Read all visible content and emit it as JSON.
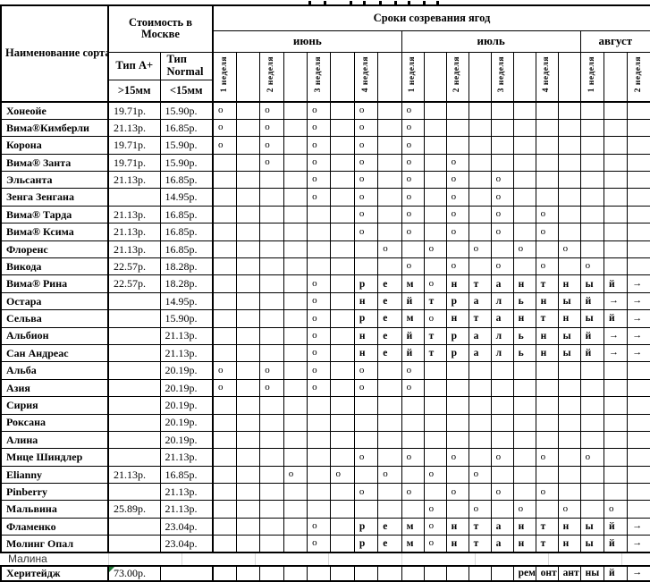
{
  "colors": {
    "border": "#000000",
    "faint_grid": "#d9d9d9",
    "error_marker_green": "#1e7a34",
    "section_text": "#333333"
  },
  "top_remnant": {
    "marks": [
      345,
      362,
      391,
      406,
      424,
      441,
      456,
      473,
      488
    ]
  },
  "header": {
    "name_column": "Наименование сорта",
    "cost_group_line1": "Стоимость  в",
    "cost_group_line2": "Москве",
    "type_a": "Тип А+",
    "type_normal_line1": "Тип",
    "type_normal_line2": "Normal",
    "size_a": ">15мм",
    "size_normal": "<15мм",
    "ripening_group": "Сроки созревания ягод",
    "months": [
      {
        "label": "июнь",
        "weeks": 8
      },
      {
        "label": "июль",
        "weeks": 8
      },
      {
        "label": "август",
        "weeks": 3
      }
    ],
    "week_label_cols": {
      "1": "1 неделя",
      "3": "2 неделя",
      "5": "3 неделя",
      "7": "4 неделя",
      "9": "1 неделя",
      "11": "2 неделя",
      "13": "3 неделя",
      "15": "4 неделя",
      "17": "1 неделя",
      "19": "2 неделя"
    }
  },
  "rows": [
    {
      "name": "Хонеойе",
      "price_a": "19.71р.",
      "price_normal": "15.90р.",
      "cells": {
        "1": "о",
        "3": "о",
        "5": "о",
        "7": "о",
        "9": "о"
      }
    },
    {
      "name": "Вима®Кимберли",
      "price_a": "21.13р.",
      "price_normal": "16.85р.",
      "cells": {
        "1": "о",
        "3": "о",
        "5": "о",
        "7": "о",
        "9": "о"
      }
    },
    {
      "name": "Корона",
      "price_a": "19.71р.",
      "price_normal": "15.90р.",
      "cells": {
        "1": "о",
        "3": "о",
        "5": "о",
        "7": "о",
        "9": "о"
      }
    },
    {
      "name": "Вима® Занта",
      "price_a": "19.71р.",
      "price_normal": "15.90р.",
      "cells": {
        "3": "о",
        "5": "о",
        "7": "о",
        "9": "о",
        "11": "о"
      }
    },
    {
      "name": "Эльсанта",
      "price_a": "21.13р.",
      "price_normal": "16.85р.",
      "cells": {
        "5": "о",
        "7": "о",
        "9": "о",
        "11": "о",
        "13": "о"
      }
    },
    {
      "name": "Зенга Зенгана",
      "price_a": "",
      "price_normal": "14.95р.",
      "cells": {
        "5": "о",
        "7": "о",
        "9": "о",
        "11": "о",
        "13": "о"
      }
    },
    {
      "name": "Вима® Тарда",
      "price_a": "21.13р.",
      "price_normal": "16.85р.",
      "cells": {
        "7": "о",
        "9": "о",
        "11": "о",
        "13": "о",
        "15": "о"
      }
    },
    {
      "name": "Вима® Ксима",
      "price_a": "21.13р.",
      "price_normal": "16.85р.",
      "cells": {
        "7": "о",
        "9": "о",
        "11": "о",
        "13": "о",
        "15": "о"
      }
    },
    {
      "name": "Флоренс",
      "price_a": "21.13р.",
      "price_normal": "16.85р.",
      "cells": {
        "8": "о",
        "10": "о",
        "12": "о",
        "14": "о",
        "16": "о"
      }
    },
    {
      "name": "Викода",
      "price_a": "22.57р.",
      "price_normal": "18.28р.",
      "cells": {
        "9": "о",
        "11": "о",
        "13": "о",
        "15": "о",
        "17": "о"
      }
    },
    {
      "name": "Вима® Рина",
      "price_a": "22.57р.",
      "price_normal": "18.28р.",
      "cells": {
        "5": "о",
        "7": "р",
        "8": "е",
        "9": "м",
        "10": "о",
        "11": "н",
        "12": "т",
        "13": "а",
        "14": "н",
        "15": "т",
        "16": "н",
        "17": "ы",
        "18": "й",
        "19": "→"
      }
    },
    {
      "name": "Остара",
      "price_a": "",
      "price_normal": "14.95р.",
      "cells": {
        "5": "о",
        "7": "н",
        "8": "е",
        "9": "й",
        "10": "т",
        "11": "р",
        "12": "а",
        "13": "л",
        "14": "ь",
        "15": "н",
        "16": "ы",
        "17": "й",
        "18": "→",
        "19": "→"
      }
    },
    {
      "name": "Сельва",
      "price_a": "",
      "price_normal": "15.90р.",
      "cells": {
        "5": "о",
        "7": "р",
        "8": "е",
        "9": "м",
        "10": "о",
        "11": "н",
        "12": "т",
        "13": "а",
        "14": "н",
        "15": "т",
        "16": "н",
        "17": "ы",
        "18": "й",
        "19": "→"
      }
    },
    {
      "name": "Альбион",
      "price_a": "",
      "price_normal": "21.13р.",
      "cells": {
        "5": "о",
        "7": "н",
        "8": "е",
        "9": "й",
        "10": "т",
        "11": "р",
        "12": "а",
        "13": "л",
        "14": "ь",
        "15": "н",
        "16": "ы",
        "17": "й",
        "18": "→",
        "19": "→"
      }
    },
    {
      "name": "Сан Андреас",
      "price_a": "",
      "price_normal": "21.13р.",
      "cells": {
        "5": "о",
        "7": "н",
        "8": "е",
        "9": "й",
        "10": "т",
        "11": "р",
        "12": "а",
        "13": "л",
        "14": "ь",
        "15": "н",
        "16": "ы",
        "17": "й",
        "18": "→",
        "19": "→"
      }
    },
    {
      "name": "Альба",
      "price_a": "",
      "price_normal": "20.19р.",
      "cells": {
        "1": "о",
        "3": "о",
        "5": "о",
        "7": "о",
        "9": "о"
      }
    },
    {
      "name": "Азия",
      "price_a": "",
      "price_normal": "20.19р.",
      "cells": {
        "1": "о",
        "3": "о",
        "5": "о",
        "7": "о",
        "9": "о"
      }
    },
    {
      "name": "Сирия",
      "price_a": "",
      "price_normal": "20.19р.",
      "cells": {}
    },
    {
      "name": "Роксана",
      "price_a": "",
      "price_normal": "20.19р.",
      "cells": {}
    },
    {
      "name": "Алина",
      "price_a": "",
      "price_normal": "20.19р.",
      "cells": {}
    },
    {
      "name": "Мице Шиндлер",
      "price_a": "",
      "price_normal": "21.13р.",
      "cells": {
        "7": "о",
        "9": "о",
        "11": "о",
        "13": "о",
        "15": "о",
        "17": "о"
      }
    },
    {
      "name": "Elianny",
      "price_a": "21.13р.",
      "price_normal": "16.85р.",
      "cells": {
        "4": "о",
        "6": "о",
        "8": "о",
        "10": "о",
        "12": "о"
      }
    },
    {
      "name": "Pinberry",
      "price_a": "",
      "price_normal": "21.13р.",
      "cells": {
        "7": "о",
        "9": "о",
        "11": "о",
        "13": "о",
        "15": "о"
      }
    },
    {
      "name": "Мальвина",
      "price_a": "25.89р.",
      "price_normal": "21.13р.",
      "cells": {
        "10": "о",
        "12": "о",
        "14": "о",
        "16": "о",
        "18": "о"
      }
    },
    {
      "name": "Фламенко",
      "price_a": "",
      "price_normal": "23.04р.",
      "cells": {
        "5": "о",
        "7": "р",
        "8": "е",
        "9": "м",
        "10": "о",
        "11": "н",
        "12": "т",
        "13": "а",
        "14": "н",
        "15": "т",
        "16": "н",
        "17": "ы",
        "18": "й",
        "19": "→"
      }
    },
    {
      "name": "Молинг Опал",
      "price_a": "",
      "price_normal": "23.04р.",
      "cells": {
        "5": "о",
        "7": "р",
        "8": "е",
        "9": "м",
        "10": "о",
        "11": "н",
        "12": "т",
        "13": "а",
        "14": "н",
        "15": "т",
        "16": "н",
        "17": "ы",
        "18": "й",
        "19": "→"
      }
    }
  ],
  "section_row": {
    "label": "Малина"
  },
  "footer_row": {
    "name": "Херитейдж",
    "price_a": "73.00р.",
    "price_normal": "",
    "cells": {
      "14": "рем",
      "15": "онт",
      "16": "ант",
      "17": "ны",
      "18": "й",
      "19": "→"
    },
    "error_marker": true
  }
}
